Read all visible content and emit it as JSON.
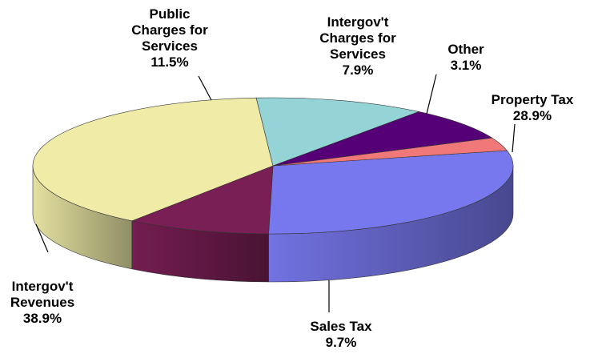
{
  "chart_data": {
    "type": "pie",
    "style": "3d-exploded-none",
    "slices": [
      {
        "label": "Property Tax",
        "label_lines": [
          "Property Tax"
        ],
        "value": 28.9,
        "value_text": "28.9%",
        "color": "#7878ee"
      },
      {
        "label": "Sales Tax",
        "label_lines": [
          "Sales Tax"
        ],
        "value": 9.7,
        "value_text": "9.7%",
        "color": "#7a1f55"
      },
      {
        "label": "Intergov't Revenues",
        "label_lines": [
          "Intergov't",
          "Revenues"
        ],
        "value": 38.9,
        "value_text": "38.9%",
        "color": "#f0eca8"
      },
      {
        "label": "Public Charges for Services",
        "label_lines": [
          "Public",
          "Charges for",
          "Services"
        ],
        "value": 11.5,
        "value_text": "11.5%",
        "color": "#94d4d6"
      },
      {
        "label": "Intergov't Charges for Services",
        "label_lines": [
          "Intergov't",
          "Charges for",
          "Services"
        ],
        "value": 7.9,
        "value_text": "7.9%",
        "color": "#560078"
      },
      {
        "label": "Other",
        "label_lines": [
          "Other"
        ],
        "value": 3.1,
        "value_text": "3.1%",
        "color": "#f07878"
      }
    ]
  }
}
